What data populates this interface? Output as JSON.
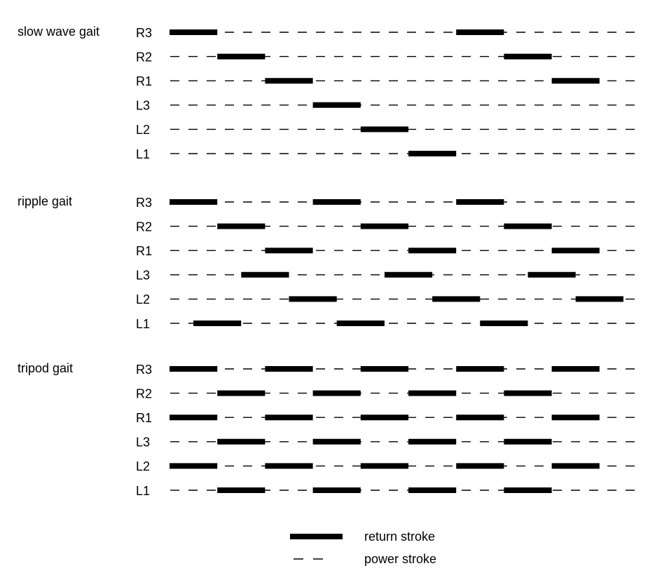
{
  "gaits": [
    {
      "title": "slow wave gait",
      "legs": [
        {
          "label": "R3",
          "return_strokes": [
            [
              0,
              1
            ],
            [
              6,
              7
            ]
          ]
        },
        {
          "label": "R2",
          "return_strokes": [
            [
              1,
              2
            ],
            [
              7,
              8
            ]
          ]
        },
        {
          "label": "R1",
          "return_strokes": [
            [
              2,
              3
            ],
            [
              8,
              9
            ]
          ]
        },
        {
          "label": "L3",
          "return_strokes": [
            [
              3,
              4
            ]
          ]
        },
        {
          "label": "L2",
          "return_strokes": [
            [
              4,
              5
            ]
          ]
        },
        {
          "label": "L1",
          "return_strokes": [
            [
              5,
              6
            ]
          ]
        }
      ]
    },
    {
      "title": "ripple gait",
      "legs": [
        {
          "label": "R3",
          "return_strokes": [
            [
              0,
              1
            ],
            [
              3,
              4
            ],
            [
              6,
              7
            ]
          ]
        },
        {
          "label": "R2",
          "return_strokes": [
            [
              1,
              2
            ],
            [
              4,
              5
            ],
            [
              7,
              8
            ]
          ]
        },
        {
          "label": "R1",
          "return_strokes": [
            [
              2,
              3
            ],
            [
              5,
              6
            ],
            [
              8,
              9
            ]
          ]
        },
        {
          "label": "L3",
          "return_strokes": [
            [
              1.5,
              2.5
            ],
            [
              4.5,
              5.5
            ],
            [
              7.5,
              8.5
            ]
          ]
        },
        {
          "label": "L2",
          "return_strokes": [
            [
              2.5,
              3.5
            ],
            [
              5.5,
              6.5
            ],
            [
              8.5,
              9.5
            ]
          ]
        },
        {
          "label": "L1",
          "return_strokes": [
            [
              0.5,
              1.5
            ],
            [
              3.5,
              4.5
            ],
            [
              6.5,
              7.5
            ]
          ]
        }
      ]
    },
    {
      "title": "tripod gait",
      "legs": [
        {
          "label": "R3",
          "return_strokes": [
            [
              0,
              1
            ],
            [
              2,
              3
            ],
            [
              4,
              5
            ],
            [
              6,
              7
            ],
            [
              8,
              9
            ]
          ]
        },
        {
          "label": "R2",
          "return_strokes": [
            [
              1,
              2
            ],
            [
              3,
              4
            ],
            [
              5,
              6
            ],
            [
              7,
              8
            ]
          ]
        },
        {
          "label": "R1",
          "return_strokes": [
            [
              0,
              1
            ],
            [
              2,
              3
            ],
            [
              4,
              5
            ],
            [
              6,
              7
            ],
            [
              8,
              9
            ]
          ]
        },
        {
          "label": "L3",
          "return_strokes": [
            [
              1,
              2
            ],
            [
              3,
              4
            ],
            [
              5,
              6
            ],
            [
              7,
              8
            ]
          ]
        },
        {
          "label": "L2",
          "return_strokes": [
            [
              0,
              1
            ],
            [
              2,
              3
            ],
            [
              4,
              5
            ],
            [
              6,
              7
            ],
            [
              8,
              9
            ]
          ]
        },
        {
          "label": "L1",
          "return_strokes": [
            [
              1,
              2
            ],
            [
              3,
              4
            ],
            [
              5,
              6
            ],
            [
              7,
              8
            ]
          ]
        }
      ]
    }
  ],
  "legend": {
    "return_label": "return stroke",
    "power_label": "power stroke"
  },
  "colors": {
    "ink": "#000000",
    "background": "#ffffff"
  }
}
